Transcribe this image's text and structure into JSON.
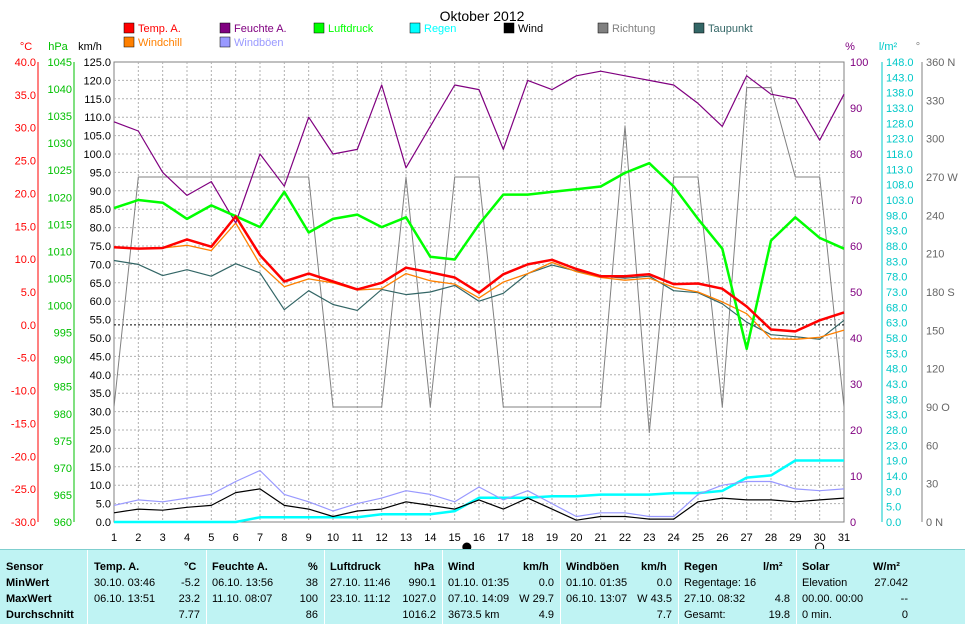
{
  "chart_data": {
    "type": "line",
    "title": "Oktober 2012",
    "x": [
      1,
      2,
      3,
      4,
      5,
      6,
      7,
      8,
      9,
      10,
      11,
      12,
      13,
      14,
      15,
      16,
      17,
      18,
      19,
      20,
      21,
      22,
      23,
      24,
      25,
      26,
      27,
      28,
      29,
      30,
      31
    ],
    "x_ticks": [
      "1",
      "2",
      "3",
      "4",
      "5",
      "6",
      "7",
      "8",
      "9",
      "10",
      "11",
      "12",
      "13",
      "14",
      "15",
      "16",
      "17",
      "18",
      "19",
      "20",
      "21",
      "22",
      "23",
      "24",
      "25",
      "26",
      "27",
      "28",
      "29",
      "30",
      "31"
    ],
    "axes": {
      "temp": {
        "label": "°C",
        "min": -30,
        "max": 40,
        "step": 5,
        "ticks": [
          "-30.0",
          "-25.0",
          "-20.0",
          "-15.0",
          "-10.0",
          "-5.0",
          "0.0",
          "5.0",
          "10.0",
          "15.0",
          "20.0",
          "25.0",
          "30.0",
          "35.0",
          "40.0"
        ]
      },
      "pressure": {
        "label": "hPa",
        "min": 960,
        "max": 1045,
        "step": 5,
        "ticks": [
          "960",
          "965",
          "970",
          "975",
          "980",
          "985",
          "990",
          "995",
          "1000",
          "1005",
          "1010",
          "1015",
          "1020",
          "1025",
          "1030",
          "1035",
          "1040",
          "1045"
        ]
      },
      "wind": {
        "label": "km/h",
        "min": 0,
        "max": 125,
        "step": 5,
        "ticks": [
          "0.0",
          "5.0",
          "10.0",
          "15.0",
          "20.0",
          "25.0",
          "30.0",
          "35.0",
          "40.0",
          "45.0",
          "50.0",
          "55.0",
          "60.0",
          "65.0",
          "70.0",
          "75.0",
          "80.0",
          "85.0",
          "90.0",
          "95.0",
          "100.0",
          "105.0",
          "110.0",
          "115.0",
          "120.0",
          "125.0"
        ]
      },
      "humidity": {
        "label": "%",
        "min": 0,
        "max": 100,
        "step": 10,
        "ticks": [
          "0",
          "10",
          "20",
          "30",
          "40",
          "50",
          "60",
          "70",
          "80",
          "90",
          "100"
        ]
      },
      "rain": {
        "label": "l/m²",
        "min": 0,
        "max": 148,
        "step": 5,
        "ticks": [
          "0.0",
          "5.0",
          "9.0",
          "14.0",
          "19.0",
          "23.0",
          "28.0",
          "33.0",
          "38.0",
          "43.0",
          "48.0",
          "53.0",
          "58.0",
          "63.0",
          "68.0",
          "73.0",
          "78.0",
          "83.0",
          "88.0",
          "93.0",
          "98.0",
          "103.0",
          "108.0",
          "113.0",
          "118.0",
          "123.0",
          "128.0",
          "133.0",
          "138.0",
          "143.0",
          "148.0"
        ]
      },
      "direction": {
        "label": "°",
        "min": 0,
        "max": 360,
        "ticks": [
          "0 N",
          "30",
          "60",
          "90 O",
          "120",
          "150",
          "180 S",
          "210",
          "240",
          "270 W",
          "300",
          "330",
          "360 N"
        ]
      }
    },
    "zero_line": true,
    "grid": true,
    "legend_placement": "top",
    "series": [
      {
        "name": "Temp. A.",
        "axis": "temp",
        "color": "#ff0000",
        "values": [
          11.8,
          11.6,
          11.7,
          13,
          11.9,
          16.5,
          10.6,
          6.6,
          7.8,
          6.6,
          5.4,
          6.4,
          8.7,
          8,
          7.2,
          4.9,
          7.7,
          9.2,
          9.9,
          8.5,
          7.4,
          7.4,
          7.7,
          6.2,
          6.3,
          5.5,
          2.8,
          -0.7,
          -1,
          0.7,
          1.9
        ]
      },
      {
        "name": "Windchill",
        "axis": "temp",
        "color": "#ff8000",
        "values": [
          11.8,
          11.6,
          11.7,
          12.1,
          11.3,
          15.5,
          9.2,
          5.8,
          7,
          6.4,
          5.3,
          5.5,
          7.8,
          6.7,
          6.2,
          4.1,
          6.5,
          7.8,
          9.5,
          8.1,
          7.2,
          6.8,
          7.1,
          5.7,
          5,
          3.5,
          1.7,
          -2.1,
          -2.2,
          -1.9,
          -0.8
        ]
      },
      {
        "name": "Taupunkt",
        "axis": "temp",
        "color": "#336666",
        "values": [
          9.8,
          9.2,
          7.5,
          8.4,
          7.4,
          9.3,
          7.9,
          2.3,
          5.2,
          3.1,
          2.2,
          5.4,
          4.6,
          5,
          6,
          3.6,
          4.8,
          7.8,
          9.1,
          8.2,
          7.4,
          7.1,
          7.4,
          5.2,
          4.9,
          3.2,
          0.4,
          -1.5,
          -1.8,
          -2.2,
          0.7
        ]
      },
      {
        "name": "Feuchte A.",
        "axis": "humidity",
        "color": "#800080",
        "values": [
          87,
          85,
          76,
          71,
          74,
          65,
          80,
          73,
          88,
          80,
          81,
          95,
          77,
          86,
          95,
          94,
          81,
          96,
          94,
          97,
          98,
          97,
          96,
          95,
          91,
          86,
          97,
          93,
          92,
          83,
          93
        ]
      },
      {
        "name": "Luftdruck",
        "axis": "pressure",
        "color": "#00ff00",
        "values": [
          1018,
          1019.5,
          1019,
          1016,
          1018.5,
          1016.5,
          1014.5,
          1021,
          1013.5,
          1016,
          1016.8,
          1014.5,
          1016.3,
          1009,
          1008.5,
          1015,
          1020.5,
          1020.5,
          1021,
          1021.5,
          1022,
          1024.5,
          1026.3,
          1022,
          1016,
          1010.5,
          992,
          1012,
          1016.3,
          1012.5,
          1010.5
        ]
      },
      {
        "name": "Regen",
        "axis": "rain",
        "color": "#00ffff",
        "values": [
          0,
          0,
          0,
          0,
          0,
          0,
          1.5,
          1.5,
          1.5,
          1.5,
          1.5,
          2.5,
          2.5,
          2.5,
          3.5,
          7.8,
          7.8,
          7.8,
          8.3,
          8.3,
          8.8,
          8.8,
          8.8,
          9.3,
          9.3,
          10,
          14.3,
          15,
          19.8,
          19.8,
          19.8
        ]
      },
      {
        "name": "Wind",
        "axis": "wind",
        "color": "#000000",
        "values": [
          2.5,
          3.5,
          3.2,
          4,
          4.5,
          8,
          9,
          4.5,
          3.5,
          1.5,
          3,
          3.5,
          5.5,
          4.5,
          3.5,
          6,
          3.5,
          6.5,
          3.5,
          0.5,
          1.5,
          1.5,
          0.8,
          0.8,
          5.5,
          6.5,
          6,
          6,
          5.5,
          6,
          6.5
        ]
      },
      {
        "name": "Windböen",
        "axis": "wind",
        "color": "#9999ff",
        "values": [
          4.5,
          6,
          5.5,
          6.5,
          7.5,
          11,
          14,
          7.5,
          5.5,
          3,
          5,
          6.5,
          8.5,
          7.5,
          5.5,
          9.5,
          6,
          8.5,
          5,
          1.5,
          2.5,
          2.5,
          1.5,
          1.5,
          7.5,
          10,
          11,
          11,
          9,
          8.5,
          9
        ]
      },
      {
        "name": "Richtung",
        "axis": "direction",
        "color": "#808080",
        "values": [
          90,
          270,
          270,
          270,
          270,
          270,
          270,
          270,
          270,
          90,
          90,
          90,
          270,
          90,
          270,
          270,
          90,
          90,
          90,
          90,
          90,
          310,
          70,
          270,
          270,
          90,
          340,
          340,
          270,
          270,
          90
        ]
      }
    ],
    "moon_phases": [
      {
        "day": 15.5,
        "phase": "full"
      },
      {
        "day": 30,
        "phase": "new"
      }
    ]
  },
  "stats": {
    "headers": {
      "sensor": "Sensor",
      "temp": "Temp. A.",
      "temp_unit": "°C",
      "hum": "Feuchte A.",
      "hum_unit": "%",
      "press": "Luftdruck",
      "press_unit": "hPa",
      "wind": "Wind",
      "wind_unit": "km/h",
      "gust": "Windböen",
      "gust_unit": "km/h",
      "rain": "Regen",
      "rain_unit": "l/m²",
      "solar": "Solar",
      "solar_unit": "W/m²"
    },
    "rows": [
      {
        "label": "MinWert",
        "temp_t": "30.10.  03:46",
        "temp_v": "-5.2",
        "hum_t": "06.10.  13:56",
        "hum_v": "38",
        "press_t": "27.10.  11:46",
        "press_v": "990.1",
        "wind_t": "01.10.  01:35",
        "wind_v": "0.0",
        "gust_t": "01.10.  01:35",
        "gust_v": "0.0",
        "rain_t": "Regentage: 16",
        "rain_v": "",
        "solar_t": "Elevation",
        "solar_v": "27.042"
      },
      {
        "label": "MaxWert",
        "temp_t": "06.10.  13:51",
        "temp_v": "23.2",
        "hum_t": "11.10.  08:07",
        "hum_v": "100",
        "press_t": "23.10.  11:12",
        "press_v": "1027.0",
        "wind_t": "07.10.  14:09",
        "wind_v": "W 29.7",
        "gust_t": "06.10.  13:07",
        "gust_v": "W 43.5",
        "rain_t": "27.10.  08:32",
        "rain_v": "4.8",
        "solar_t": "00.00.  00:00",
        "solar_v": "--"
      },
      {
        "label": "Durchschnitt",
        "temp_t": "",
        "temp_v": "7.77",
        "hum_t": "",
        "hum_v": "86",
        "press_t": "",
        "press_v": "1016.2",
        "wind_t": "3673.5 km",
        "wind_v": "4.9",
        "gust_t": "",
        "gust_v": "7.7",
        "rain_t": "Gesamt:",
        "rain_v": "19.8",
        "solar_t": "0 min.",
        "solar_v": "0"
      }
    ]
  }
}
